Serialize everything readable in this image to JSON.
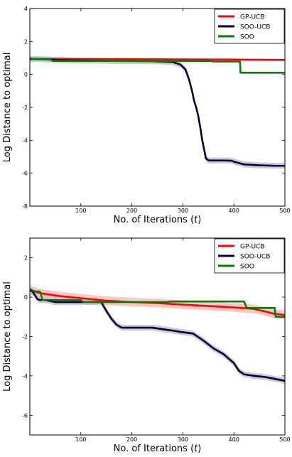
{
  "chart_data": [
    {
      "type": "line",
      "title": "",
      "xlabel": "No. of Iterations (t)",
      "xlabel_parts": {
        "prefix": "No. of Iterations (",
        "var": "t",
        "suffix": ")"
      },
      "ylabel": "Log Distance to optimal",
      "xlim": [
        0,
        500
      ],
      "ylim": [
        -8,
        4
      ],
      "xticks": [
        100,
        200,
        300,
        400,
        500
      ],
      "yticks": [
        -8,
        -6,
        -4,
        -2,
        0,
        2,
        4
      ],
      "legend": "top-right",
      "series": [
        {
          "name": "GP-UCB",
          "color": "#ff0000",
          "band_color": "#ffb3b3",
          "x": [
            0,
            100,
            200,
            300,
            400,
            500
          ],
          "y": [
            0.95,
            0.93,
            0.92,
            0.91,
            0.9,
            0.88
          ],
          "band": 0.04
        },
        {
          "name": "SOO-UCB",
          "color": "#000033",
          "band_color": "#b8b8d0",
          "x": [
            0,
            80,
            160,
            240,
            280,
            295,
            305,
            312,
            318,
            322,
            326,
            330,
            334,
            338,
            342,
            345,
            350,
            355,
            360,
            380,
            395,
            400,
            420,
            450,
            480,
            500
          ],
          "y": [
            0.95,
            0.85,
            0.82,
            0.8,
            0.75,
            0.6,
            0.3,
            -0.3,
            -1.0,
            -1.6,
            -2.0,
            -2.5,
            -3.2,
            -4.0,
            -4.6,
            -5.1,
            -5.22,
            -5.23,
            -5.23,
            -5.23,
            -5.24,
            -5.3,
            -5.47,
            -5.52,
            -5.55,
            -5.55
          ],
          "band": 0.18
        },
        {
          "name": "SOO",
          "color": "#008000",
          "band_color": "#a6d4a6",
          "x": [
            0,
            40,
            45,
            355,
            360,
            412,
            413,
            500
          ],
          "y": [
            0.92,
            0.92,
            0.82,
            0.82,
            0.78,
            0.78,
            0.1,
            0.1
          ],
          "band": 0
        }
      ]
    },
    {
      "type": "line",
      "title": "",
      "xlabel": "No. of Iterations (t)",
      "xlabel_parts": {
        "prefix": "No. of Iterations (",
        "var": "t",
        "suffix": ")"
      },
      "ylabel": "Log Distance to optimal",
      "xlim": [
        0,
        500
      ],
      "ylim": [
        -7,
        3
      ],
      "xticks": [
        100,
        200,
        300,
        400,
        500
      ],
      "yticks": [
        -6,
        -4,
        -2,
        0,
        2
      ],
      "legend": "top-right",
      "series": [
        {
          "name": "GP-UCB",
          "color": "#ff0000",
          "band_color": "#ffb3b3",
          "x": [
            0,
            20,
            60,
            100,
            150,
            200,
            250,
            300,
            350,
            400,
            440,
            460,
            480,
            500
          ],
          "y": [
            0.35,
            0.2,
            0.05,
            -0.05,
            -0.18,
            -0.25,
            -0.3,
            -0.38,
            -0.45,
            -0.52,
            -0.6,
            -0.72,
            -0.85,
            -0.9
          ],
          "band": 0.22
        },
        {
          "name": "SOO-UCB",
          "color": "#000033",
          "band_color": "#b8b8d0",
          "x": [
            0,
            5,
            15,
            20,
            30,
            40,
            50,
            100,
            140,
            150,
            160,
            170,
            180,
            200,
            240,
            280,
            300,
            320,
            340,
            360,
            380,
            400,
            410,
            420,
            440,
            460,
            480,
            500
          ],
          "y": [
            0.35,
            0.3,
            -0.1,
            -0.15,
            -0.15,
            -0.2,
            -0.25,
            -0.25,
            -0.25,
            -0.7,
            -1.1,
            -1.4,
            -1.55,
            -1.55,
            -1.55,
            -1.7,
            -1.78,
            -1.85,
            -2.2,
            -2.6,
            -2.9,
            -3.35,
            -3.75,
            -3.92,
            -4.0,
            -4.05,
            -4.15,
            -4.25
          ],
          "band": 0.15
        },
        {
          "name": "SOO",
          "color": "#008000",
          "band_color": "#a6d4a6",
          "x": [
            0,
            10,
            20,
            25,
            100,
            105,
            270,
            275,
            420,
            425,
            480,
            482,
            500
          ],
          "y": [
            0.4,
            0.3,
            0.28,
            -0.15,
            -0.15,
            -0.25,
            -0.25,
            -0.22,
            -0.22,
            -0.55,
            -0.55,
            -1.0,
            -1.0
          ],
          "band": 0
        }
      ]
    }
  ]
}
